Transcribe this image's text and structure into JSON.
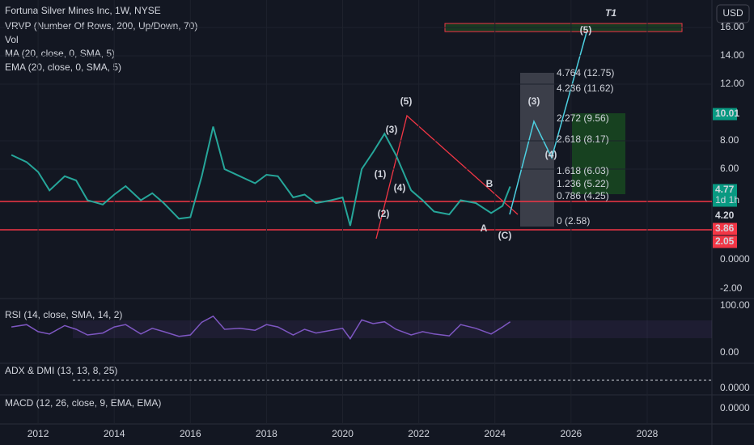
{
  "header": {
    "title": "Fortuna Silver Mines Inc, 1W, NYSE",
    "indicators": [
      "VRVP (Number Of Rows, 200, Up/Down, 70)",
      "Vol",
      "MA (20, close, 0, SMA, 5)",
      "EMA (20, close, 0, SMA, 5)"
    ],
    "currency": "USD"
  },
  "chart_data": {
    "type": "line",
    "x": [
      2011.3,
      2011.7,
      2012.0,
      2012.3,
      2012.7,
      2013.0,
      2013.3,
      2013.7,
      2014.0,
      2014.3,
      2014.7,
      2015.0,
      2015.3,
      2015.7,
      2016.0,
      2016.3,
      2016.6,
      2016.9,
      2017.3,
      2017.7,
      2018.0,
      2018.3,
      2018.7,
      2019.0,
      2019.3,
      2019.7,
      2020.0,
      2020.2,
      2020.5,
      2020.8,
      2021.1,
      2021.4,
      2021.8,
      2022.1,
      2022.4,
      2022.8,
      2023.1,
      2023.5,
      2023.9,
      2024.2,
      2024.4
    ],
    "values": [
      7.0,
      6.5,
      5.8,
      4.5,
      5.5,
      5.2,
      3.8,
      3.5,
      4.2,
      4.8,
      3.8,
      4.3,
      3.6,
      2.5,
      2.6,
      5.5,
      9.0,
      6.0,
      5.5,
      5.0,
      5.6,
      5.5,
      4.0,
      4.2,
      3.6,
      3.8,
      4.0,
      2.0,
      6.0,
      7.2,
      8.5,
      7.0,
      4.5,
      3.8,
      3.0,
      2.8,
      3.8,
      3.6,
      2.9,
      3.4,
      4.77
    ],
    "color": "#26a69a",
    "xlim": [
      2011.0,
      2029.7
    ],
    "xticks": [
      2012,
      2014,
      2016,
      2018,
      2020,
      2022,
      2024,
      2026,
      2028
    ],
    "ylim": [
      -2.0,
      18.0
    ],
    "yticks": [
      {
        "value": 16,
        "label": "16.00"
      },
      {
        "value": 14,
        "label": "14.00"
      },
      {
        "value": 12,
        "label": "12.00"
      },
      {
        "value": 8,
        "label": "8.00"
      },
      {
        "value": 6,
        "label": "6.00"
      }
    ]
  },
  "volume_ticks": [
    "0.0000",
    "-2.00"
  ],
  "price_labels": [
    {
      "text": "10.01",
      "color": "#089981"
    },
    {
      "text": "4.77",
      "sub": "1d 1h",
      "color": "#089981"
    },
    {
      "text": "4.20",
      "color": "#131722"
    },
    {
      "text": "3.86",
      "color": "#f23645"
    },
    {
      "text": "2.05",
      "color": "#f23645"
    }
  ],
  "fib_labels": [
    "4.764 (12.75)",
    "4.236 (11.62)",
    "2.272 (9.56)",
    "2.618 (8.17)",
    "1.618 (6.03)",
    "1.236 (5.22)",
    "0.786 (4.25)",
    "0 (2.58)"
  ],
  "waves": [
    "(1)",
    "(2)",
    "(3)",
    "(4)",
    "(5)",
    "(3)",
    "(4)",
    "(5)",
    "(C)",
    "A",
    "B",
    "T1"
  ],
  "panes": [
    {
      "title": "RSI (14, close, SMA, 14, 2)",
      "ticks": [
        "100.00",
        "0.00"
      ]
    },
    {
      "title": "ADX & DMI (13, 13, 8, 25)",
      "ticks": [
        "0.0000"
      ]
    },
    {
      "title": "MACD (12, 26, close, 9, EMA, EMA)",
      "ticks": [
        "0.0000"
      ]
    }
  ],
  "rsi": [
    55,
    60,
    45,
    40,
    58,
    50,
    38,
    42,
    55,
    60,
    40,
    52,
    45,
    35,
    38,
    65,
    78,
    50,
    52,
    48,
    60,
    55,
    38,
    50,
    42,
    48,
    52,
    30,
    70,
    62,
    66,
    50,
    38,
    45,
    40,
    36,
    60,
    52,
    40,
    55,
    66
  ]
}
